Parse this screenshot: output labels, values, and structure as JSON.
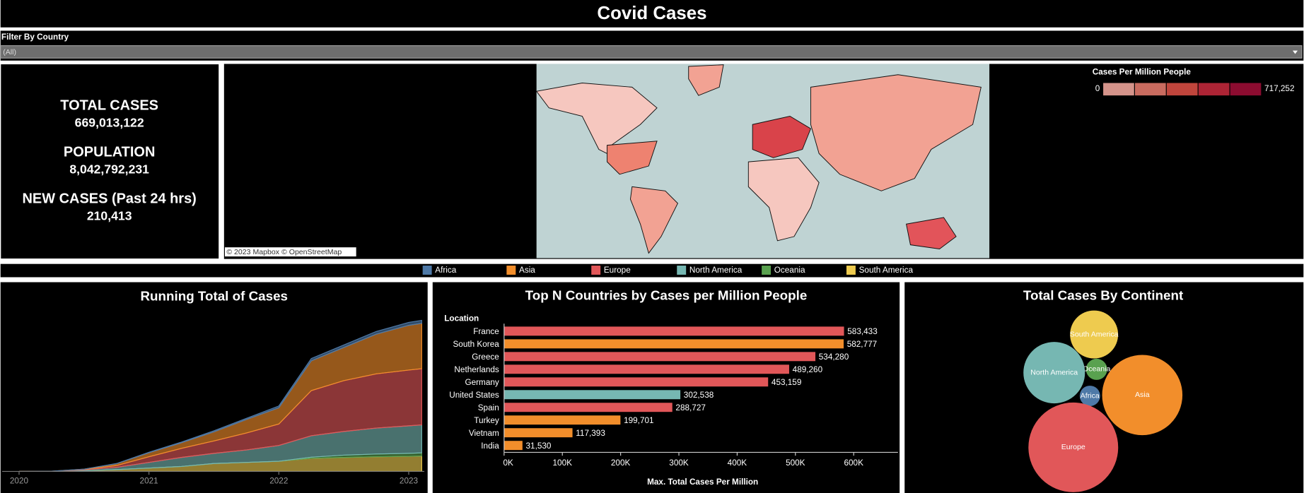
{
  "header": {
    "title": "Covid Cases"
  },
  "filter": {
    "label": "Filter By Country",
    "value": "(All)"
  },
  "kpis": [
    {
      "label": "TOTAL CASES",
      "value": "669,013,122"
    },
    {
      "label": "POPULATION",
      "value": "8,042,792,231"
    },
    {
      "label": "NEW CASES (Past 24 hrs)",
      "value": "210,413"
    }
  ],
  "map": {
    "legend_title": "Cases Per Million People",
    "scale": [
      0,
      {
        "value": 717252,
        "label": "717,252"
      }
    ],
    "colors": [
      "#d4938a",
      "#c96b5f",
      "#c0453c",
      "#ad2435",
      "#8c0c30"
    ],
    "attribution": "© 2023 Mapbox © OpenStreetMap"
  },
  "chart_data": [
    {
      "type": "area",
      "title": "Running Total of Cases",
      "stacked": true,
      "x": [
        2020,
        2020.25,
        2020.5,
        2020.75,
        2021,
        2021.25,
        2021.5,
        2021.75,
        2022,
        2022.25,
        2022.5,
        2022.75,
        2023,
        2023.1
      ],
      "xlim": [
        2019.87,
        2023.12
      ],
      "xticks": [
        2020,
        2021,
        2022,
        2023
      ],
      "series": [
        {
          "name": "South America",
          "color": "#eecb4f",
          "values": [
            0,
            0,
            3,
            8,
            15,
            22,
            35,
            40,
            45,
            58,
            62,
            65,
            67,
            68
          ]
        },
        {
          "name": "Oceania",
          "color": "#59a14f",
          "values": [
            0,
            0,
            0,
            0,
            0,
            0,
            0,
            0,
            0,
            5,
            10,
            12,
            13,
            14
          ]
        },
        {
          "name": "North America",
          "color": "#76b7b2",
          "values": [
            0,
            0,
            4,
            10,
            25,
            40,
            45,
            55,
            70,
            95,
            105,
            115,
            122,
            124
          ]
        },
        {
          "name": "Europe",
          "color": "#e15759",
          "values": [
            0,
            0,
            2,
            8,
            25,
            40,
            55,
            75,
            95,
            200,
            225,
            240,
            247,
            249
          ]
        },
        {
          "name": "Asia",
          "color": "#f28e2b",
          "values": [
            0,
            1,
            1,
            8,
            18,
            25,
            40,
            60,
            72,
            132,
            147,
            176,
            198,
            201
          ]
        },
        {
          "name": "Africa",
          "color": "#4e79a7",
          "values": [
            0,
            0,
            0,
            1,
            2,
            3,
            5,
            5,
            8,
            10,
            11,
            12,
            13,
            13
          ]
        }
      ]
    },
    {
      "type": "bar",
      "orientation": "horizontal",
      "title": "Top N Countries by Cases per Million People",
      "category_label": "Location",
      "x_label": "Max. Total Cases Per Million",
      "categories": [
        "France",
        "South Korea",
        "Greece",
        "Netherlands",
        "Germany",
        "United States",
        "Spain",
        "Turkey",
        "Vietnam",
        "India"
      ],
      "values": [
        583433,
        582777,
        534280,
        489260,
        453159,
        302538,
        288727,
        199701,
        117393,
        31530
      ],
      "value_labels": [
        "583,433",
        "582,777",
        "534,280",
        "489,260",
        "453,159",
        "302,538",
        "288,727",
        "199,701",
        "117,393",
        "31,530"
      ],
      "colors": [
        "#e15759",
        "#f28e2b",
        "#e15759",
        "#e15759",
        "#e15759",
        "#76b7b2",
        "#e15759",
        "#f28e2b",
        "#f28e2b",
        "#f28e2b"
      ],
      "xlim": [
        0,
        676000
      ],
      "xticks": [
        {
          "value": 0,
          "label": "0K"
        },
        {
          "value": 100000,
          "label": "100K"
        },
        {
          "value": 200000,
          "label": "200K"
        },
        {
          "value": 300000,
          "label": "300K"
        },
        {
          "value": 400000,
          "label": "400K"
        },
        {
          "value": 500000,
          "label": "500K"
        },
        {
          "value": 600000,
          "label": "600K"
        }
      ]
    },
    {
      "type": "bubble",
      "title": "Total Cases By Continent",
      "categories": [
        "South America",
        "Oceania",
        "North America",
        "Africa",
        "Asia",
        "Europe"
      ],
      "values": [
        72,
        14,
        118,
        13,
        201,
        251
      ],
      "colors": [
        "#eecb4f",
        "#59a14f",
        "#76b7b2",
        "#4e79a7",
        "#f28e2b",
        "#e15759"
      ]
    }
  ]
}
